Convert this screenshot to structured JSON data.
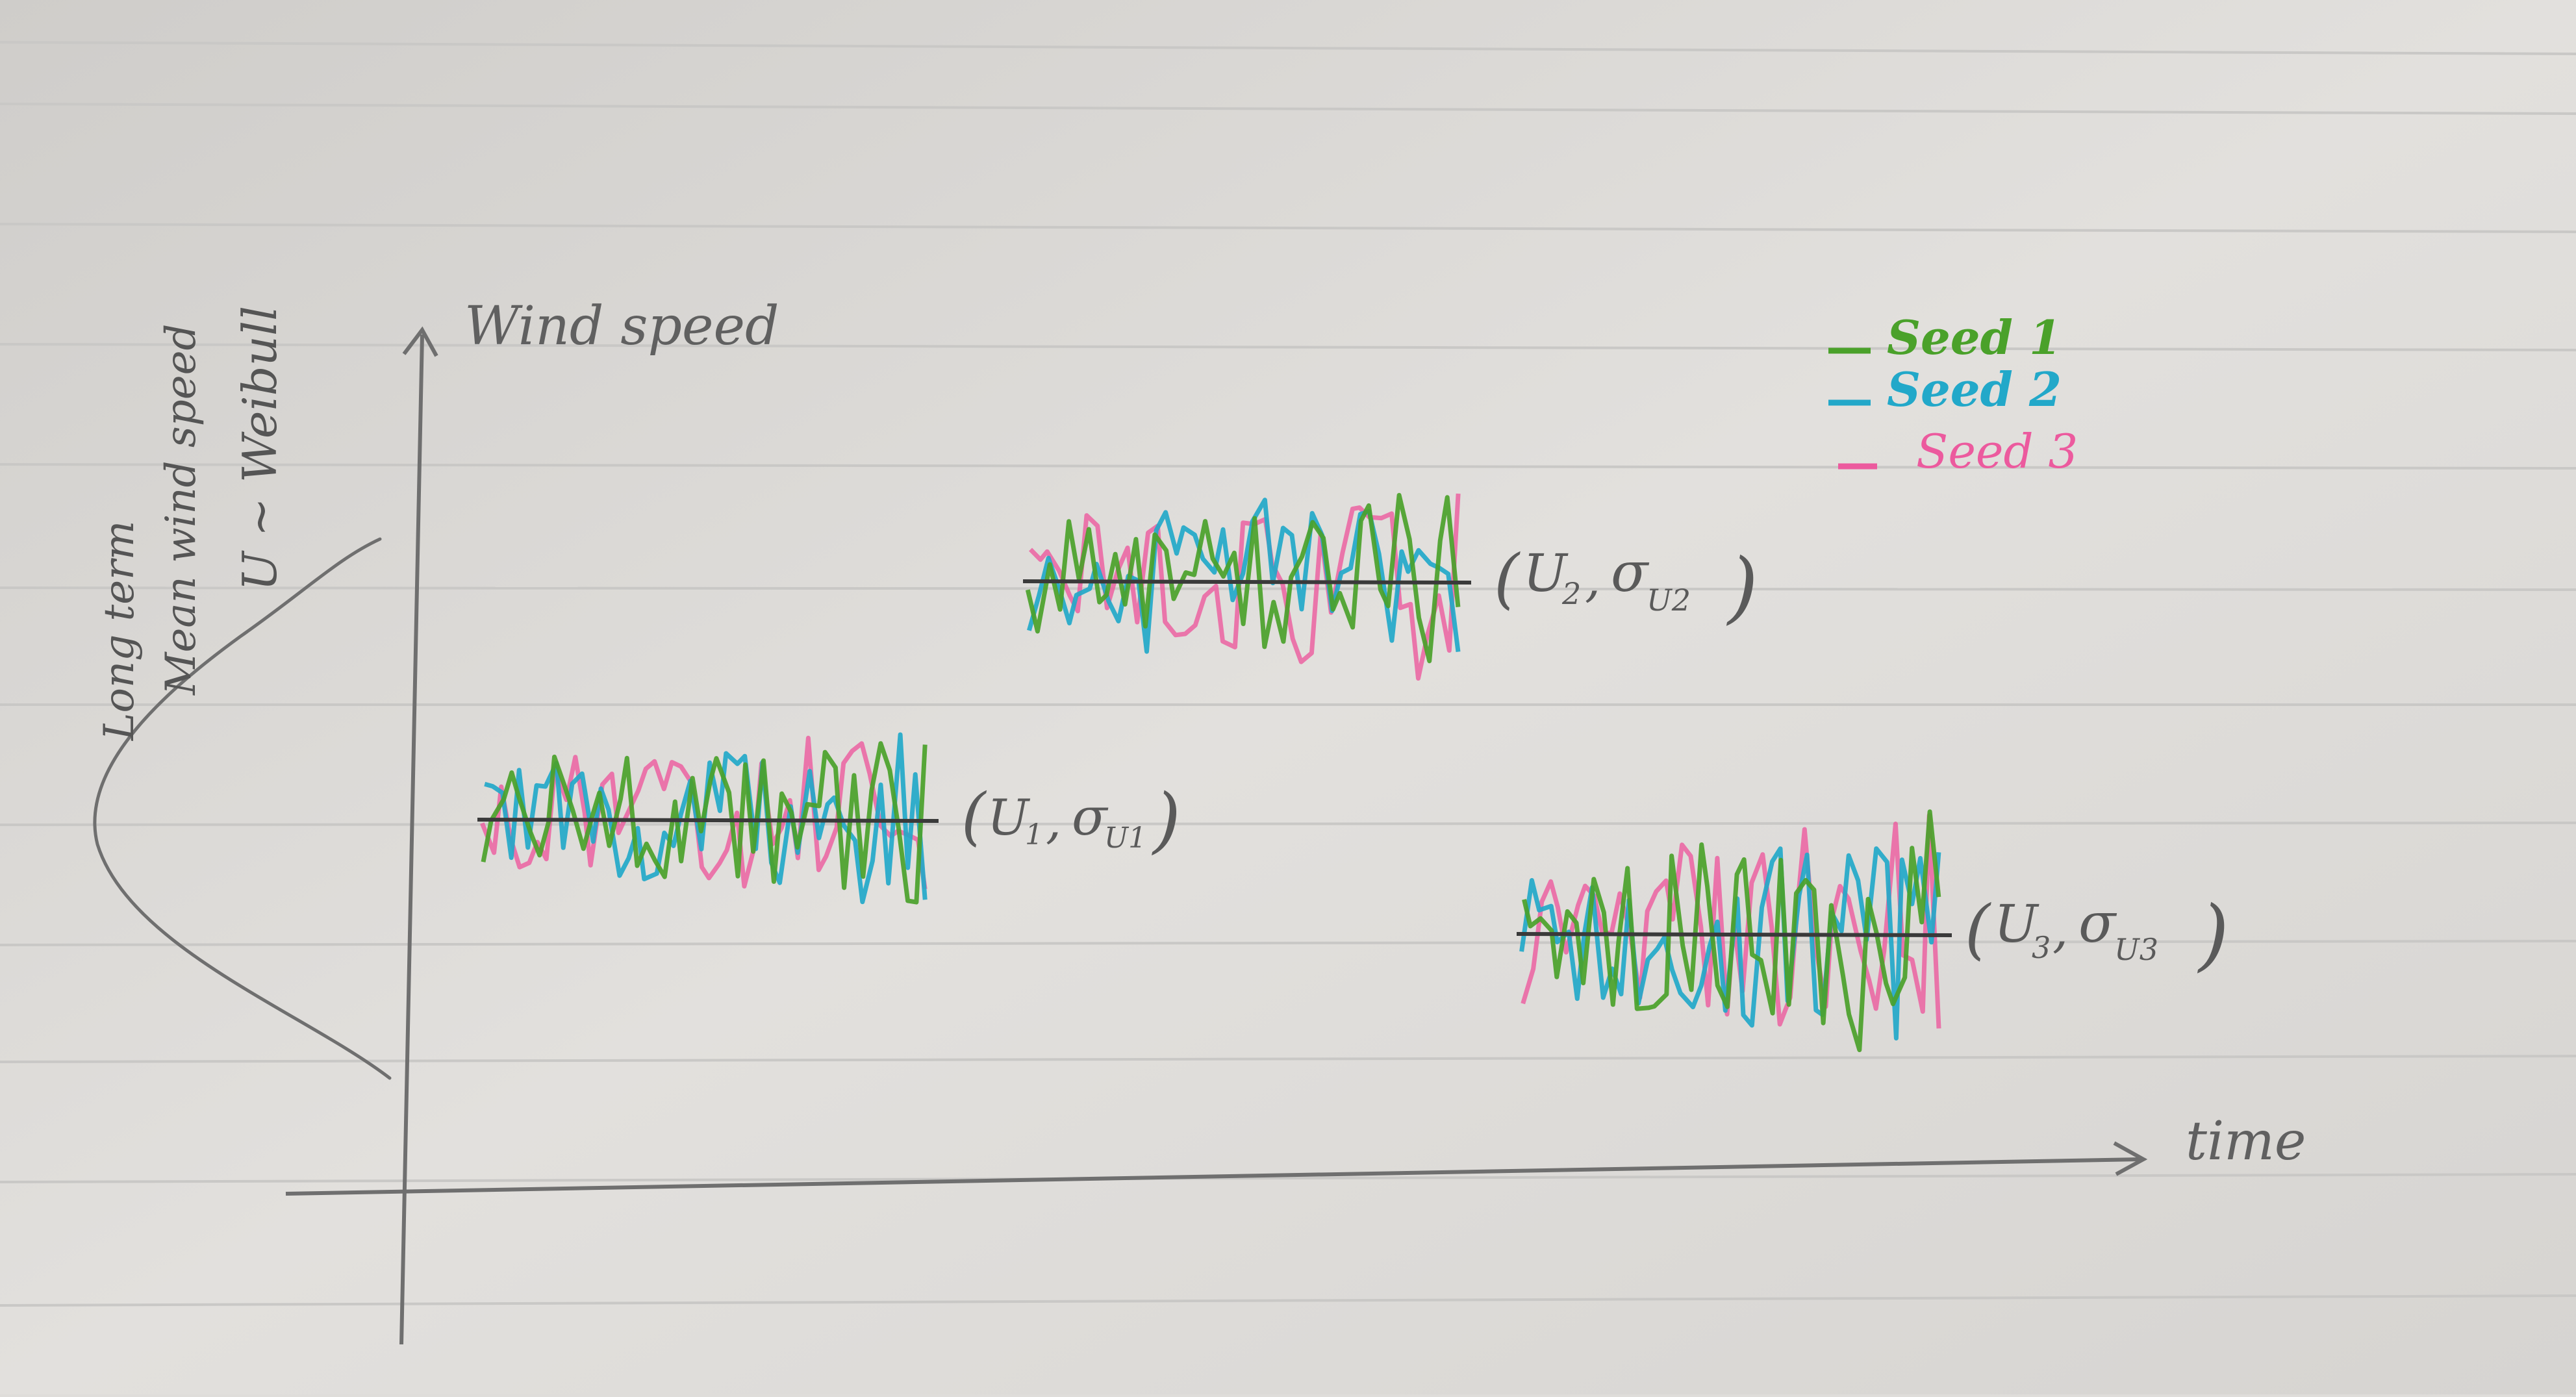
{
  "axes": {
    "y_label": "Wind speed",
    "x_label": "time"
  },
  "distribution_note": {
    "line1": "Long term",
    "line2": "Mean wind speed",
    "line3": "U ~ Weibull"
  },
  "legend": {
    "items": [
      {
        "label": "Seed 1",
        "color": "#4aa12a"
      },
      {
        "label": "Seed 2",
        "color": "#22a8c9"
      },
      {
        "label": "Seed 3",
        "color": "#ec5a9e"
      }
    ]
  },
  "segments": [
    {
      "label_u": "U",
      "label_u_sub": "1",
      "label_sigma": "σ",
      "label_sigma_sub": "U1",
      "mean_level": 1
    },
    {
      "label_u": "U",
      "label_u_sub": "2",
      "label_sigma": "σ",
      "label_sigma_sub": "U2",
      "mean_level": 2
    },
    {
      "label_u": "U",
      "label_u_sub": "3",
      "label_sigma": "σ",
      "label_sigma_sub": "U3",
      "mean_level": 0.5
    }
  ],
  "colors": {
    "paper": "#dfddda",
    "rule_line": "#c9c8c6",
    "pencil": "#6f6f6f",
    "mean_line": "#3a3a3a"
  }
}
